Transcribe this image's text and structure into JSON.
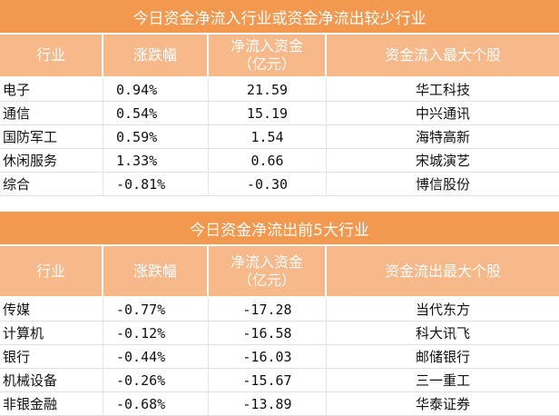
{
  "inflow_table": {
    "title": "今日资金净流入行业或资金净流出较少行业",
    "headers": {
      "industry": "行业",
      "change": "涨跌幅",
      "net_flow": "净流入资金\n（亿元）",
      "top_stock": "资金流入最大个股"
    },
    "rows": [
      {
        "industry": "电子",
        "change": "0.94%",
        "net_flow": "21.59",
        "top_stock": "华工科技"
      },
      {
        "industry": "通信",
        "change": "0.54%",
        "net_flow": "15.19",
        "top_stock": "中兴通讯"
      },
      {
        "industry": "国防军工",
        "change": "0.59%",
        "net_flow": "1.54",
        "top_stock": "海特高新"
      },
      {
        "industry": "休闲服务",
        "change": "1.33%",
        "net_flow": "0.66",
        "top_stock": "宋城演艺"
      },
      {
        "industry": "综合",
        "change": "-0.81%",
        "net_flow": "-0.30",
        "top_stock": "博信股份"
      }
    ]
  },
  "outflow_table": {
    "title": "今日资金净流出前5大行业",
    "headers": {
      "industry": "行业",
      "change": "涨跌幅",
      "net_flow": "净流入资金\n（亿元）",
      "top_stock": "资金流出最大个股"
    },
    "rows": [
      {
        "industry": "传媒",
        "change": "-0.77%",
        "net_flow": "-17.28",
        "top_stock": "当代东方"
      },
      {
        "industry": "计算机",
        "change": "-0.12%",
        "net_flow": "-16.58",
        "top_stock": "科大讯飞"
      },
      {
        "industry": "银行",
        "change": "-0.44%",
        "net_flow": "-16.03",
        "top_stock": "邮储银行"
      },
      {
        "industry": "机械设备",
        "change": "-0.26%",
        "net_flow": "-15.67",
        "top_stock": "三一重工"
      },
      {
        "industry": "非银金融",
        "change": "-0.68%",
        "net_flow": "-13.89",
        "top_stock": "华泰证券"
      }
    ]
  },
  "colors": {
    "title_bg": "#f3984f",
    "header_bg": "#f7b88a",
    "text": "#111111"
  }
}
